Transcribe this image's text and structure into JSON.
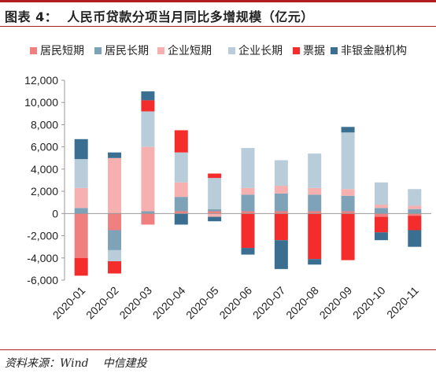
{
  "header": {
    "figure_label": "图表 4：",
    "title": "人民币贷款分项当月同比多增规模（亿元）"
  },
  "footer": {
    "source_label": "资料来源：Wind",
    "source_org": "中信建投"
  },
  "chart_data": {
    "type": "bar",
    "stacked": true,
    "categories": [
      "2020-01",
      "2020-02",
      "2020-03",
      "2020-04",
      "2020-05",
      "2020-06",
      "2020-07",
      "2020-08",
      "2020-09",
      "2020-10",
      "2020-11"
    ],
    "ylim": [
      -6000,
      12000
    ],
    "yticks": [
      -6000,
      -4000,
      -2000,
      0,
      2000,
      4000,
      6000,
      8000,
      10000,
      12000
    ],
    "ytick_labels": [
      "-6,000",
      "-4,000",
      "-2,000",
      "0",
      "2,000",
      "4,000",
      "6,000",
      "8,000",
      "10,000",
      "12,000"
    ],
    "legend_position": "top",
    "grid": false,
    "series": [
      {
        "name": "居民短期",
        "color": "#f08080",
        "values": [
          -4000,
          -1500,
          -1000,
          200,
          200,
          200,
          200,
          200,
          200,
          -300,
          -200
        ]
      },
      {
        "name": "居民长期",
        "color": "#7ea3b8",
        "values": [
          500,
          -1800,
          200,
          1300,
          200,
          1500,
          1600,
          1500,
          1400,
          500,
          400
        ]
      },
      {
        "name": "企业短期",
        "color": "#f6b0b0",
        "values": [
          1800,
          5000,
          5800,
          1300,
          -300,
          600,
          700,
          600,
          600,
          300,
          300
        ]
      },
      {
        "name": "企业长期",
        "color": "#b9ccda",
        "values": [
          2600,
          -1000,
          3200,
          2700,
          2800,
          3600,
          2300,
          3100,
          5100,
          2000,
          1500
        ]
      },
      {
        "name": "票据",
        "color": "#f42c2c",
        "values": [
          -1600,
          -1100,
          1000,
          2000,
          400,
          -3100,
          -2400,
          -4100,
          -4200,
          -1400,
          -1300
        ]
      },
      {
        "name": "非银金融机构",
        "color": "#3a6f91",
        "values": [
          1800,
          500,
          800,
          -1000,
          -400,
          -600,
          -2600,
          -500,
          500,
          -700,
          -1500
        ]
      }
    ]
  }
}
